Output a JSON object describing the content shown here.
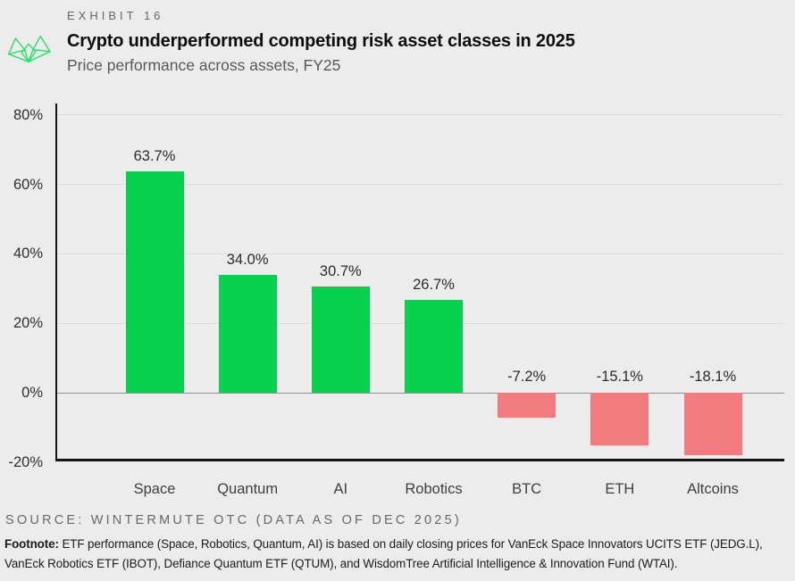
{
  "page": {
    "background": "#ececec"
  },
  "header": {
    "exhibit_label": "EXHIBIT 16",
    "title": "Crypto underperformed competing risk asset classes in 2025",
    "subtitle": "Price performance across assets, FY25",
    "logo_icon": "wintermute-logo",
    "logo_color": "#25df62"
  },
  "chart_data": {
    "type": "bar",
    "title": "Crypto underperformed competing risk asset classes in 2025",
    "subtitle": "Price performance across assets, FY25",
    "categories": [
      "Space",
      "Quantum",
      "AI",
      "Robotics",
      "BTC",
      "ETH",
      "Altcoins"
    ],
    "values": [
      63.7,
      34.0,
      30.7,
      26.7,
      -7.2,
      -15.1,
      -18.1
    ],
    "value_labels": [
      "63.7%",
      "34.0%",
      "30.7%",
      "26.7%",
      "-7.2%",
      "-15.1%",
      "-18.1%"
    ],
    "y_ticks": [
      {
        "label": "80%",
        "value": 80
      },
      {
        "label": "60%",
        "value": 60
      },
      {
        "label": "40%",
        "value": 40
      },
      {
        "label": "20%",
        "value": 20
      },
      {
        "label": "0%",
        "value": 0
      },
      {
        "label": "-20%",
        "value": -20
      }
    ],
    "ylim": [
      -20,
      80
    ],
    "grid": true,
    "legend_position": "none",
    "positive_color": "#06d04c",
    "negative_color": "#f17b7e",
    "gridline_color": "#dcdcdc",
    "zero_line_color": "#909090",
    "axis_color": "#141414"
  },
  "footer": {
    "source": "SOURCE: WINTERMUTE OTC (DATA AS OF DEC 2025)",
    "footnote_label": "Footnote:",
    "footnote_text": " ETF performance (Space, Robotics, Quantum, AI) is based on daily closing prices for VanEck Space Innovators UCITS ETF (JEDG.L), VanEck Robotics ETF (IBOT), Defiance Quantum ETF (QTUM), and WisdomTree Artificial Intelligence & Innovation Fund (WTAI)."
  }
}
